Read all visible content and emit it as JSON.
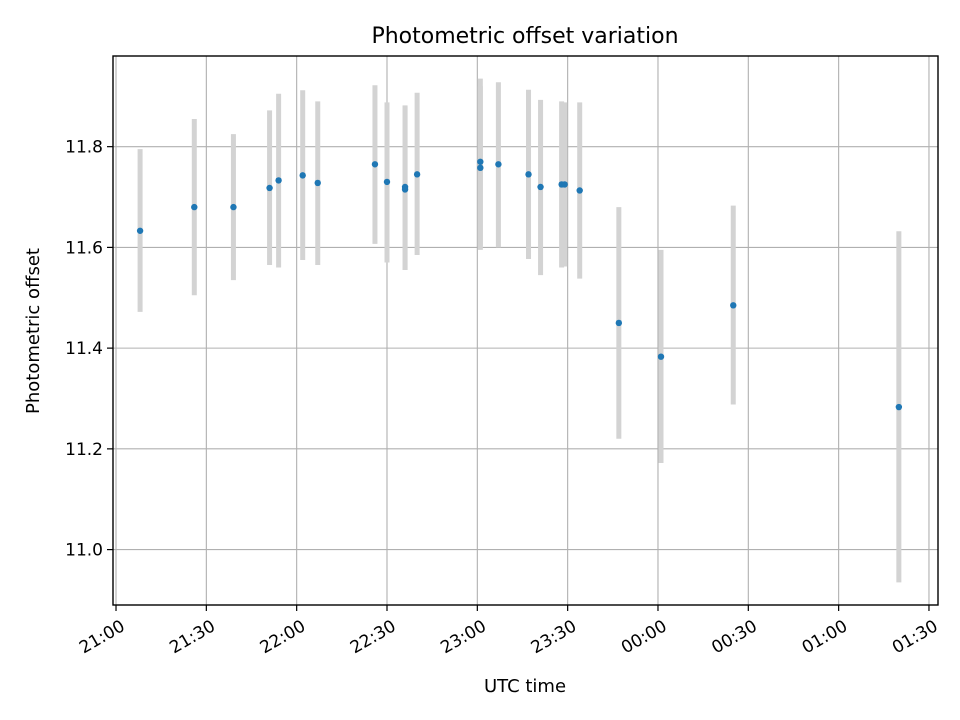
{
  "chart_data": {
    "type": "scatter",
    "title": "Photometric offset variation",
    "xlabel": "UTC time",
    "ylabel": "Photometric offset",
    "grid": true,
    "legend": "none",
    "x_axis_type": "time",
    "xlim": [
      "20:59",
      "01:33"
    ],
    "ylim": [
      10.89,
      11.98
    ],
    "x_ticks": [
      {
        "time": "21:00",
        "label": "21:00"
      },
      {
        "time": "21:30",
        "label": "21:30"
      },
      {
        "time": "22:00",
        "label": "22:00"
      },
      {
        "time": "22:30",
        "label": "22:30"
      },
      {
        "time": "23:00",
        "label": "23:00"
      },
      {
        "time": "23:30",
        "label": "23:30"
      },
      {
        "time": "00:00",
        "label": "00:00"
      },
      {
        "time": "00:30",
        "label": "00:30"
      },
      {
        "time": "01:00",
        "label": "01:00"
      },
      {
        "time": "01:30",
        "label": "01:30"
      }
    ],
    "y_ticks": [
      {
        "value": 11.0,
        "label": "11.0"
      },
      {
        "value": 11.2,
        "label": "11.2"
      },
      {
        "value": 11.4,
        "label": "11.4"
      },
      {
        "value": 11.6,
        "label": "11.6"
      },
      {
        "value": 11.8,
        "label": "11.8"
      }
    ],
    "point_color": "#1f77b4",
    "errorbar_color": "#d3d3d3",
    "points": [
      {
        "time": "21:08",
        "y": 11.633,
        "yerr_low": 11.472,
        "yerr_high": 11.795
      },
      {
        "time": "21:26",
        "y": 11.68,
        "yerr_low": 11.505,
        "yerr_high": 11.855
      },
      {
        "time": "21:39",
        "y": 11.68,
        "yerr_low": 11.535,
        "yerr_high": 11.825
      },
      {
        "time": "21:51",
        "y": 11.718,
        "yerr_low": 11.565,
        "yerr_high": 11.872
      },
      {
        "time": "21:54",
        "y": 11.733,
        "yerr_low": 11.56,
        "yerr_high": 11.905
      },
      {
        "time": "22:02",
        "y": 11.743,
        "yerr_low": 11.575,
        "yerr_high": 11.912
      },
      {
        "time": "22:07",
        "y": 11.728,
        "yerr_low": 11.565,
        "yerr_high": 11.89
      },
      {
        "time": "22:26",
        "y": 11.765,
        "yerr_low": 11.607,
        "yerr_high": 11.922
      },
      {
        "time": "22:30",
        "y": 11.73,
        "yerr_low": 11.57,
        "yerr_high": 11.888
      },
      {
        "time": "22:36",
        "y": 11.72,
        "yerr_low": 11.555,
        "yerr_high": 11.882
      },
      {
        "time": "22:36",
        "y": 11.715,
        "yerr_low": 11.555,
        "yerr_high": 11.88
      },
      {
        "time": "22:40",
        "y": 11.745,
        "yerr_low": 11.585,
        "yerr_high": 11.907
      },
      {
        "time": "23:01",
        "y": 11.758,
        "yerr_low": 11.595,
        "yerr_high": 11.92
      },
      {
        "time": "23:01",
        "y": 11.77,
        "yerr_low": 11.603,
        "yerr_high": 11.935
      },
      {
        "time": "23:07",
        "y": 11.765,
        "yerr_low": 11.6,
        "yerr_high": 11.928
      },
      {
        "time": "23:17",
        "y": 11.745,
        "yerr_low": 11.577,
        "yerr_high": 11.913
      },
      {
        "time": "23:21",
        "y": 11.72,
        "yerr_low": 11.545,
        "yerr_high": 11.893
      },
      {
        "time": "23:28",
        "y": 11.725,
        "yerr_low": 11.56,
        "yerr_high": 11.89
      },
      {
        "time": "23:29",
        "y": 11.725,
        "yerr_low": 11.562,
        "yerr_high": 11.888
      },
      {
        "time": "23:34",
        "y": 11.713,
        "yerr_low": 11.538,
        "yerr_high": 11.888
      },
      {
        "time": "23:47",
        "y": 11.45,
        "yerr_low": 11.22,
        "yerr_high": 11.68
      },
      {
        "time": "00:01",
        "y": 11.383,
        "yerr_low": 11.172,
        "yerr_high": 11.595
      },
      {
        "time": "00:25",
        "y": 11.485,
        "yerr_low": 11.288,
        "yerr_high": 11.683
      },
      {
        "time": "01:20",
        "y": 11.283,
        "yerr_low": 10.935,
        "yerr_high": 11.632
      }
    ]
  }
}
